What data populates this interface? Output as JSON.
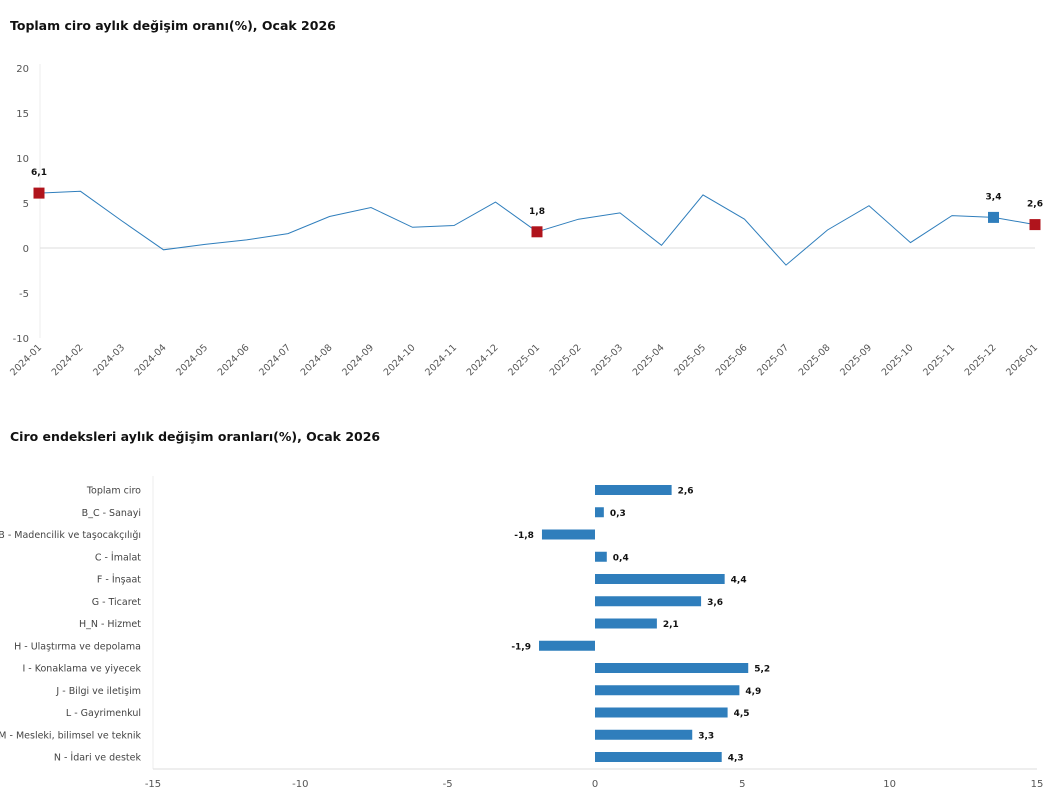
{
  "chart_data": [
    {
      "type": "line",
      "title": "Toplam ciro aylık değişim oranı(%), Ocak 2026",
      "x": [
        "2024-01",
        "2024-02",
        "2024-03",
        "2024-04",
        "2024-05",
        "2024-06",
        "2024-07",
        "2024-08",
        "2024-09",
        "2024-10",
        "2024-11",
        "2024-12",
        "2025-01",
        "2025-02",
        "2025-03",
        "2025-04",
        "2025-05",
        "2025-06",
        "2025-07",
        "2025-08",
        "2025-09",
        "2025-10",
        "2025-11",
        "2025-12",
        "2026-01"
      ],
      "values": [
        6.1,
        6.3,
        3.0,
        -0.2,
        0.4,
        0.9,
        1.6,
        3.5,
        4.5,
        2.3,
        2.5,
        5.1,
        1.8,
        3.2,
        3.9,
        0.3,
        5.9,
        3.2,
        -1.9,
        2.0,
        4.7,
        0.6,
        3.6,
        3.4,
        2.6
      ],
      "ylim": [
        -10,
        20
      ],
      "yticks": [
        20,
        15,
        10,
        5,
        0,
        -5,
        -10
      ],
      "ytick_labels": [
        "20",
        "15",
        "10",
        "5",
        "0",
        "-5",
        "-10"
      ],
      "grid": "zero line only",
      "line_color": "#2f7ebc",
      "highlighted_points": [
        {
          "x": "2024-01",
          "label": "6,1",
          "color": "#b0141c"
        },
        {
          "x": "2025-01",
          "label": "1,8",
          "color": "#b0141c"
        },
        {
          "x": "2025-12",
          "label": "3,4",
          "color": "#2f7ebc"
        },
        {
          "x": "2026-01",
          "label": "2,6",
          "color": "#b0141c"
        }
      ]
    },
    {
      "type": "bar",
      "orientation": "horizontal",
      "title": "Ciro endeksleri aylık değişim oranları(%), Ocak 2026",
      "categories": [
        "Toplam ciro",
        "B_C - Sanayi",
        "B - Madencilik ve taşocakçılığı",
        "C - İmalat",
        "F - İnşaat",
        "G - Ticaret",
        "H_N - Hizmet",
        "H - Ulaştırma ve depolama",
        "I - Konaklama ve yiyecek",
        "J - Bilgi ve iletişim",
        "L - Gayrimenkul",
        "M - Mesleki, bilimsel ve teknik",
        "N - İdari ve destek"
      ],
      "values": [
        2.6,
        0.3,
        -1.8,
        0.4,
        4.4,
        3.6,
        2.1,
        -1.9,
        5.2,
        4.9,
        4.5,
        3.3,
        4.3
      ],
      "labels": [
        "2,6",
        "0,3",
        "-1,8",
        "0,4",
        "4,4",
        "3,6",
        "2,1",
        "-1,9",
        "5,2",
        "4,9",
        "4,5",
        "3,3",
        "4,3"
      ],
      "xlim": [
        -15,
        15
      ],
      "xticks": [
        -15,
        -10,
        -5,
        0,
        5,
        10,
        15
      ],
      "xtick_labels": [
        "-15",
        "-10",
        "-5",
        "0",
        "5",
        "10",
        "15"
      ],
      "bar_color": "#2f7ebc"
    }
  ]
}
